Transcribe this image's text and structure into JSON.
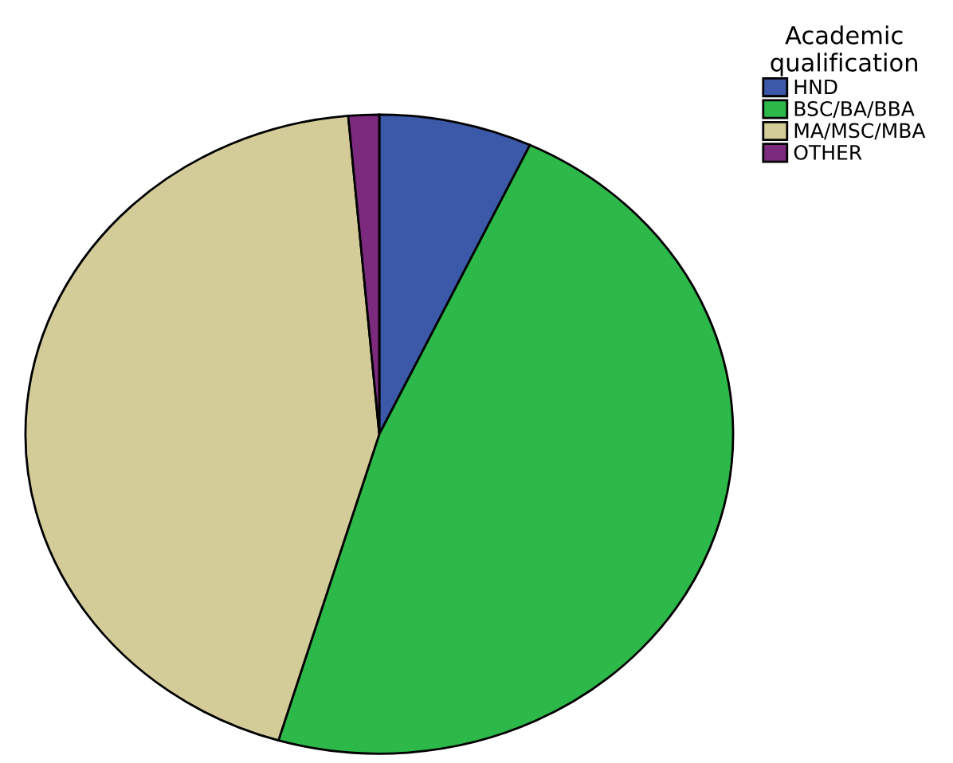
{
  "chart_data": {
    "type": "pie",
    "legend_title": "Academic\nqualification",
    "categories": [
      "HND",
      "BSC/BA/BBA",
      "MA/MSC/MBA",
      "OTHER"
    ],
    "values": [
      7,
      47.6,
      44,
      1.4
    ],
    "colors": [
      "#3c58a8",
      "#2db84a",
      "#d4cc98",
      "#7b2a7e"
    ],
    "legend": "top right"
  }
}
